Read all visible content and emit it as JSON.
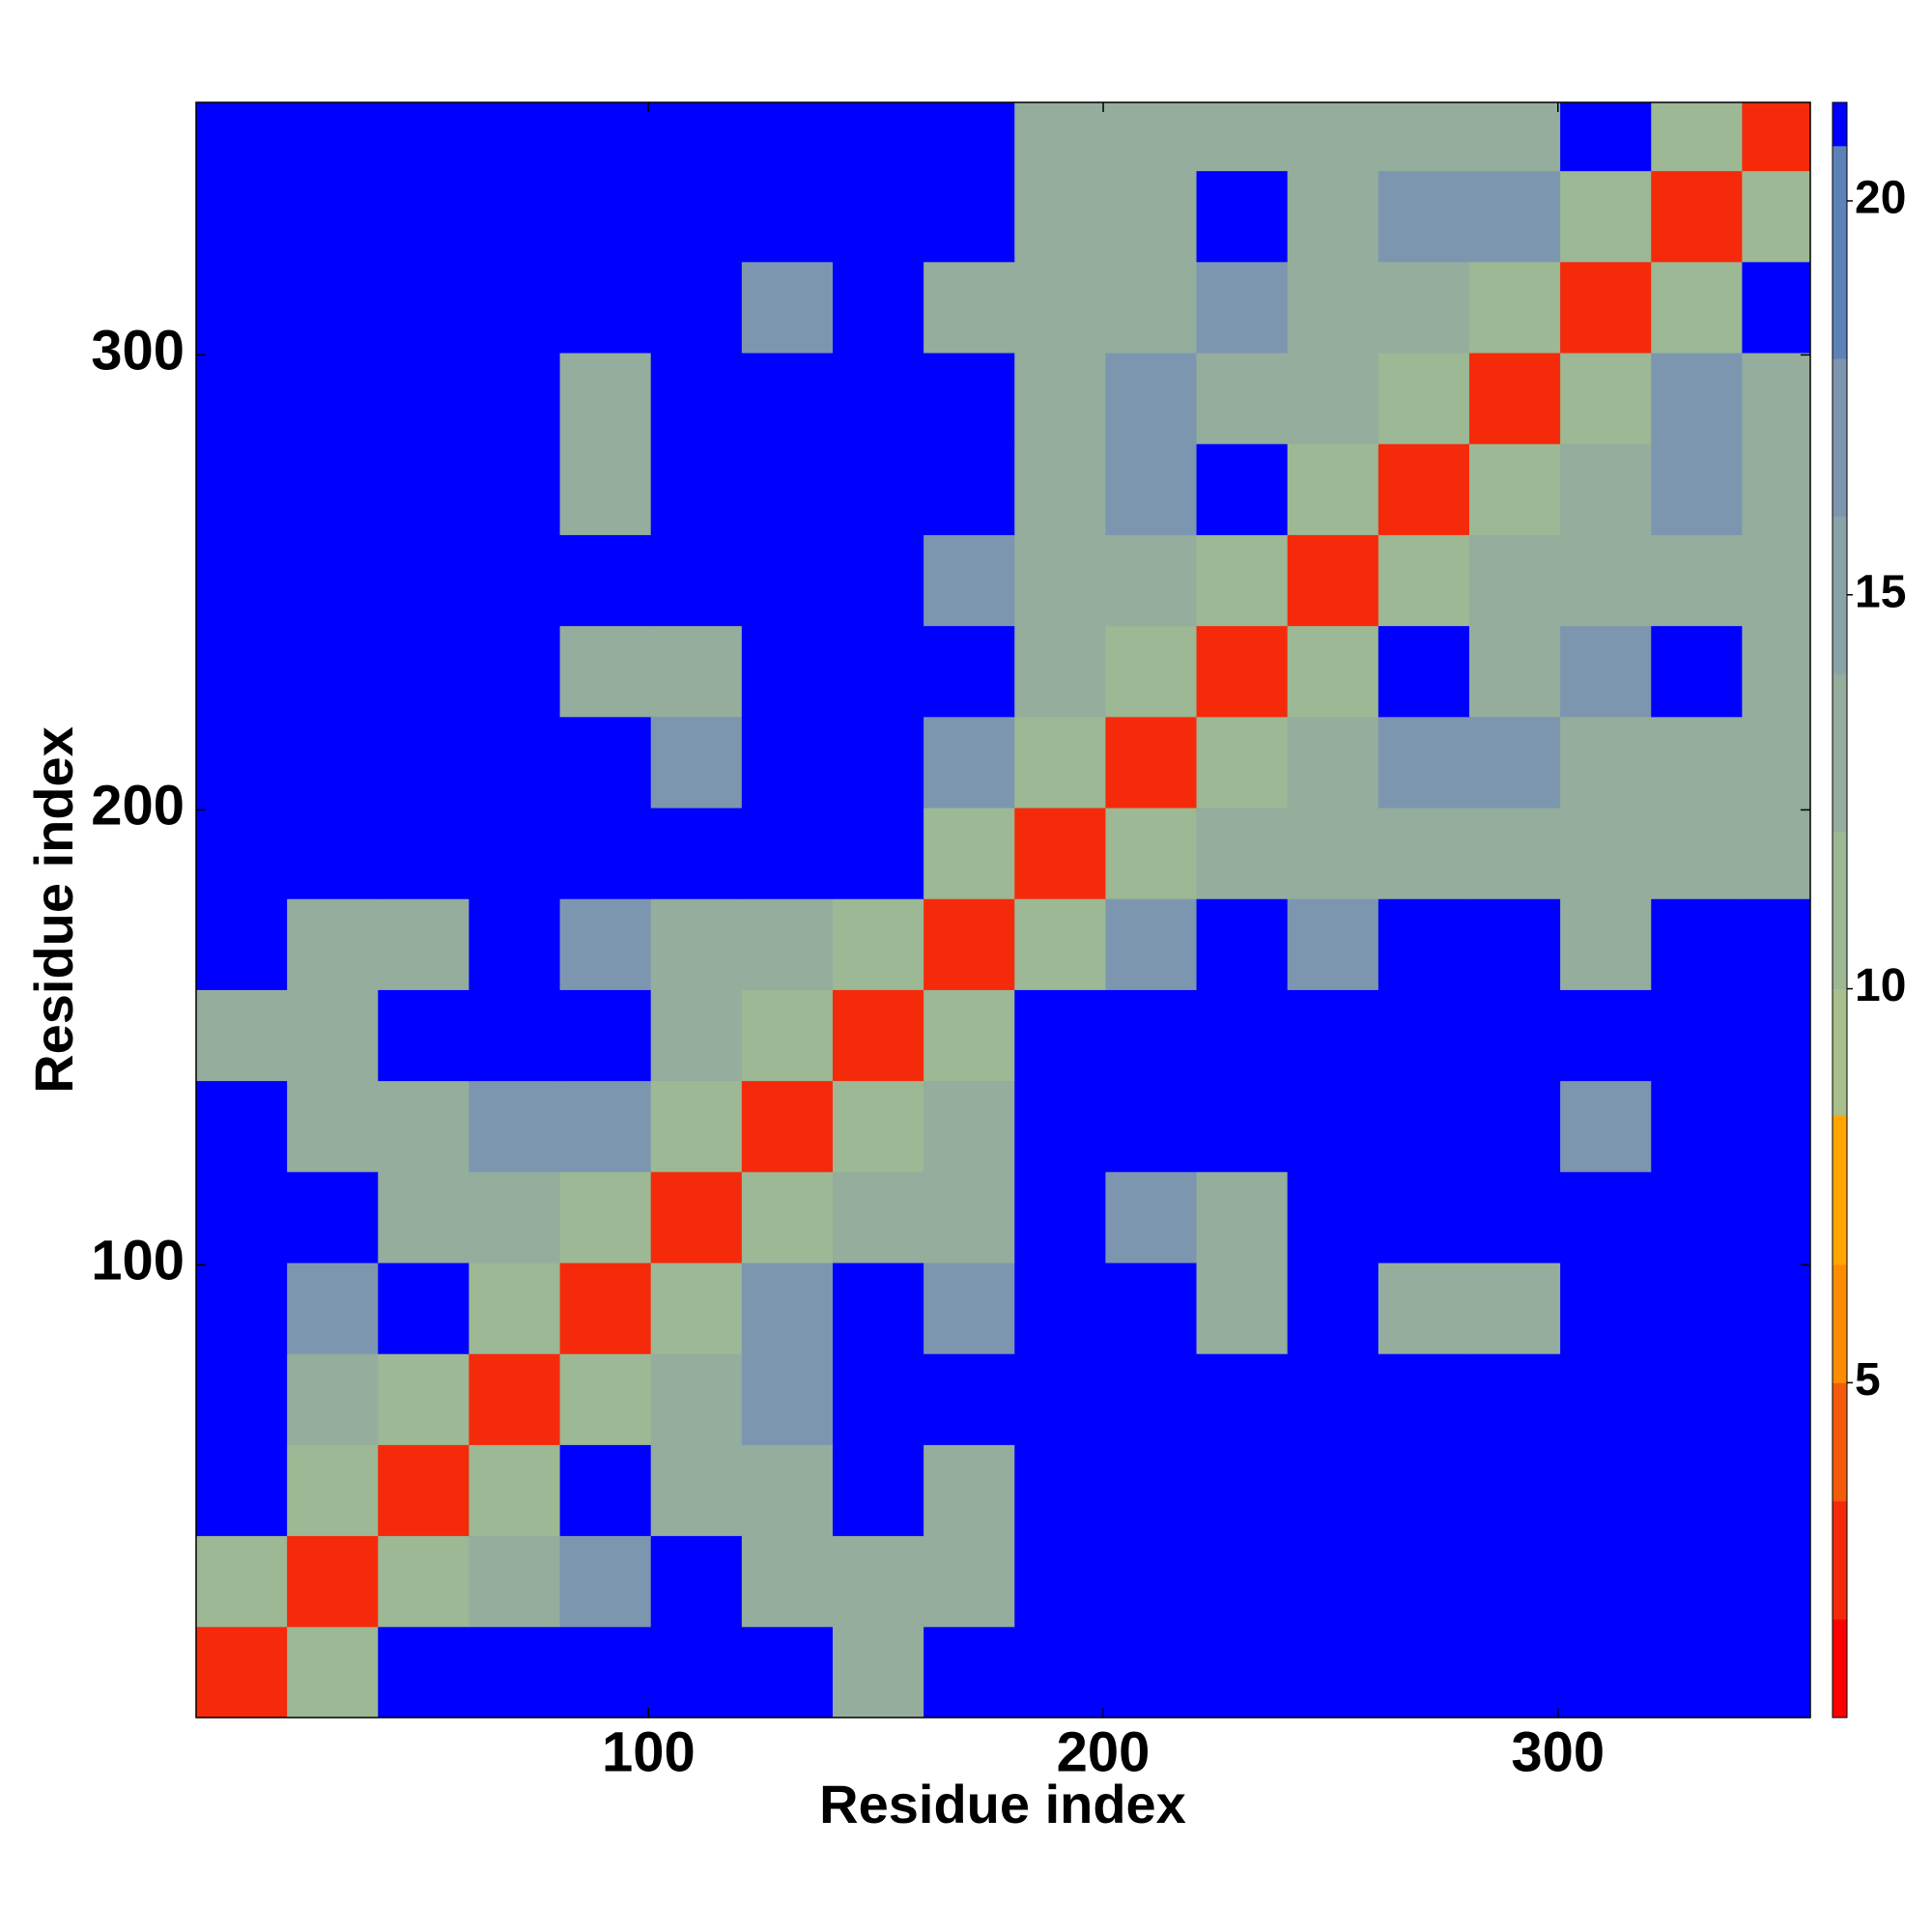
{
  "chart_data": {
    "type": "heatmap",
    "xlabel": "Residue index",
    "ylabel": "Residue index",
    "x": [
      10.5,
      30.5,
      50.5,
      70.5,
      90.5,
      110.5,
      130.5,
      150.5,
      170.5,
      190.5,
      210.5,
      230.5,
      250.5,
      270.5,
      290.5,
      310.5,
      330.5,
      350.5
    ],
    "y": [
      10.5,
      30.5,
      50.5,
      70.5,
      90.5,
      110.5,
      130.5,
      150.5,
      170.5,
      190.5,
      210.5,
      230.5,
      250.5,
      270.5,
      290.5,
      310.5,
      330.5,
      350.5
    ],
    "values": [
      [
        3,
        11,
        21,
        21,
        21,
        21,
        21,
        13,
        21,
        21,
        21,
        21,
        21,
        21,
        21,
        21,
        21,
        21
      ],
      [
        11,
        3,
        11,
        13,
        17,
        21,
        13,
        13,
        13,
        21,
        21,
        21,
        21,
        21,
        21,
        21,
        21,
        21
      ],
      [
        21,
        11,
        3,
        11,
        21,
        13,
        13,
        21,
        13,
        21,
        21,
        21,
        21,
        21,
        21,
        21,
        21,
        21
      ],
      [
        21,
        13,
        11,
        3,
        11,
        13,
        17,
        21,
        21,
        21,
        21,
        21,
        21,
        21,
        21,
        21,
        21,
        21
      ],
      [
        21,
        17,
        21,
        11,
        3,
        11,
        17,
        21,
        17,
        21,
        21,
        13,
        21,
        13,
        13,
        21,
        21,
        21
      ],
      [
        21,
        21,
        13,
        13,
        11,
        3,
        11,
        13,
        13,
        21,
        17,
        13,
        21,
        21,
        21,
        21,
        21,
        21
      ],
      [
        21,
        13,
        13,
        17,
        17,
        11,
        3,
        11,
        13,
        21,
        21,
        21,
        21,
        21,
        21,
        17,
        21,
        21
      ],
      [
        13,
        13,
        21,
        21,
        21,
        13,
        11,
        3,
        11,
        21,
        21,
        21,
        21,
        21,
        21,
        21,
        21,
        21
      ],
      [
        21,
        13,
        13,
        21,
        17,
        13,
        13,
        11,
        3,
        11,
        17,
        21,
        17,
        21,
        21,
        13,
        21,
        21
      ],
      [
        21,
        21,
        21,
        21,
        21,
        21,
        21,
        21,
        11,
        3,
        11,
        13,
        13,
        13,
        13,
        13,
        13,
        13
      ],
      [
        21,
        21,
        21,
        21,
        21,
        17,
        21,
        21,
        17,
        11,
        3,
        11,
        13,
        17,
        17,
        13,
        13,
        13
      ],
      [
        21,
        21,
        21,
        21,
        13,
        13,
        21,
        21,
        21,
        13,
        11,
        3,
        11,
        21,
        13,
        17,
        21,
        13
      ],
      [
        21,
        21,
        21,
        21,
        21,
        21,
        21,
        21,
        17,
        13,
        13,
        11,
        3,
        11,
        13,
        13,
        13,
        13
      ],
      [
        21,
        21,
        21,
        21,
        13,
        21,
        21,
        21,
        21,
        13,
        17,
        21,
        11,
        3,
        11,
        13,
        17,
        13
      ],
      [
        21,
        21,
        21,
        21,
        13,
        21,
        21,
        21,
        21,
        13,
        17,
        13,
        13,
        11,
        3,
        11,
        17,
        13
      ],
      [
        21,
        21,
        21,
        21,
        21,
        21,
        17,
        21,
        13,
        13,
        13,
        17,
        13,
        13,
        11,
        3,
        11,
        21
      ],
      [
        21,
        21,
        21,
        21,
        21,
        21,
        21,
        21,
        21,
        13,
        13,
        21,
        13,
        17,
        17,
        11,
        3,
        11
      ],
      [
        21,
        21,
        21,
        21,
        21,
        21,
        21,
        21,
        21,
        13,
        13,
        13,
        13,
        13,
        13,
        21,
        11,
        3
      ]
    ],
    "xlim": [
      0.5,
      355.5
    ],
    "ylim": [
      0.5,
      355.5
    ],
    "xticks": [
      100,
      200,
      300
    ],
    "yticks": [
      100,
      200,
      300
    ],
    "zlim": [
      0.75,
      21.25
    ],
    "zticks": [
      5,
      10,
      15,
      20
    ],
    "color_levels": [
      0.75,
      2,
      3.5,
      5,
      6.5,
      8.4,
      10,
      12,
      14,
      16,
      18,
      20.7,
      21.25
    ],
    "colors": [
      "#ff0000",
      "#f52a0a",
      "#f55a0a",
      "#ff8c00",
      "#ffa500",
      "#a7c08c",
      "#9cb894",
      "#94ad9c",
      "#8aa3a8",
      "#7d96b0",
      "#5d82b8",
      "#0000ff"
    ]
  }
}
